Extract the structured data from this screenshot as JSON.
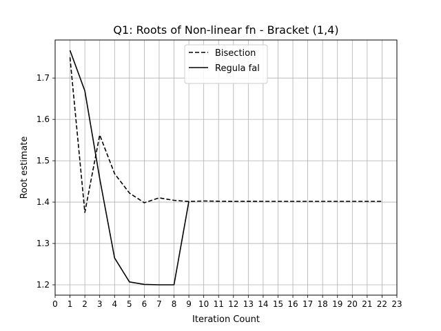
{
  "chart_data": {
    "type": "line",
    "title": "Q1: Roots of Non-linear fn - Bracket (1,4)",
    "xlabel": "Iteration Count",
    "ylabel": "Root estimate",
    "xlim": [
      0,
      23
    ],
    "ylim": [
      1.175,
      1.792
    ],
    "xticks": [
      0,
      1,
      2,
      3,
      4,
      5,
      6,
      7,
      8,
      9,
      10,
      11,
      12,
      13,
      14,
      15,
      16,
      17,
      18,
      19,
      20,
      21,
      22,
      23
    ],
    "yticks": [
      1.2,
      1.3,
      1.4,
      1.5,
      1.6,
      1.7
    ],
    "grid": true,
    "legend_position": "top-center",
    "series": [
      {
        "name": "Bisection",
        "style": "dashed",
        "color": "#000000",
        "x": [
          1,
          2,
          3,
          4,
          5,
          6,
          7,
          8,
          9,
          10,
          11,
          12,
          13,
          14,
          15,
          16,
          17,
          18,
          19,
          20,
          21,
          22
        ],
        "y": [
          1.75,
          1.375,
          1.5625,
          1.4688,
          1.4219,
          1.3984,
          1.4102,
          1.4043,
          1.4014,
          1.4028,
          1.4021,
          1.4017,
          1.4019,
          1.4018,
          1.4018,
          1.4018,
          1.4018,
          1.4018,
          1.4018,
          1.4018,
          1.4018,
          1.4018
        ]
      },
      {
        "name": "Regula fal",
        "style": "solid",
        "color": "#000000",
        "x": [
          1,
          2,
          3,
          4,
          5,
          6,
          7,
          8,
          9
        ],
        "y": [
          1.767,
          1.669,
          1.457,
          1.265,
          1.207,
          1.201,
          1.2,
          1.2,
          1.402
        ]
      }
    ]
  }
}
